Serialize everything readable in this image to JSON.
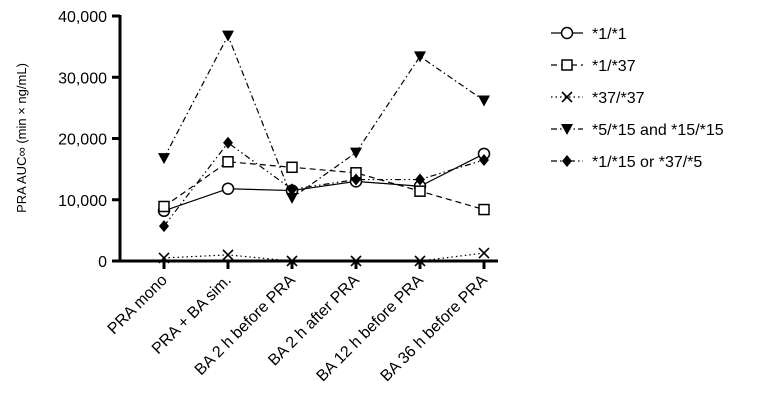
{
  "chart_data": {
    "type": "line",
    "title": "",
    "xlabel": "",
    "ylabel": "PRA AUC∞ (min × ng/mL)",
    "ylim": [
      0,
      40000
    ],
    "yticks": [
      0,
      10000,
      20000,
      30000,
      40000
    ],
    "ytick_labels": [
      "0",
      "10,000",
      "20,000",
      "30,000",
      "40,000"
    ],
    "categories": [
      "PRA mono",
      "PRA + BA sim.",
      "BA 2 h before PRA",
      "BA 2 h after PRA",
      "BA 12 h before PRA",
      "BA 36 h before PRA"
    ],
    "grid": false,
    "legend_position": "right",
    "series": [
      {
        "name": "*1/*1",
        "marker": "open-circle",
        "dash": "solid",
        "values": [
          8200,
          11800,
          11500,
          13000,
          12200,
          17500
        ]
      },
      {
        "name": "*1/*37",
        "marker": "open-square",
        "dash": "dashed",
        "values": [
          8900,
          16200,
          15300,
          14400,
          11400,
          8400
        ]
      },
      {
        "name": "*37/*37",
        "marker": "x",
        "dash": "dotted",
        "values": [
          500,
          1000,
          0,
          0,
          0,
          1300
        ]
      },
      {
        "name": "*5/*15 and *15/*15",
        "marker": "filled-triangle-down",
        "dash": "dash-dot",
        "values": [
          16800,
          36800,
          10300,
          17700,
          33400,
          26200
        ]
      },
      {
        "name": "*1/*15 or *37/*5",
        "marker": "filled-diamond",
        "dash": "dash-dot-dot",
        "values": [
          5700,
          19300,
          11700,
          13300,
          13300,
          16500
        ]
      }
    ]
  }
}
